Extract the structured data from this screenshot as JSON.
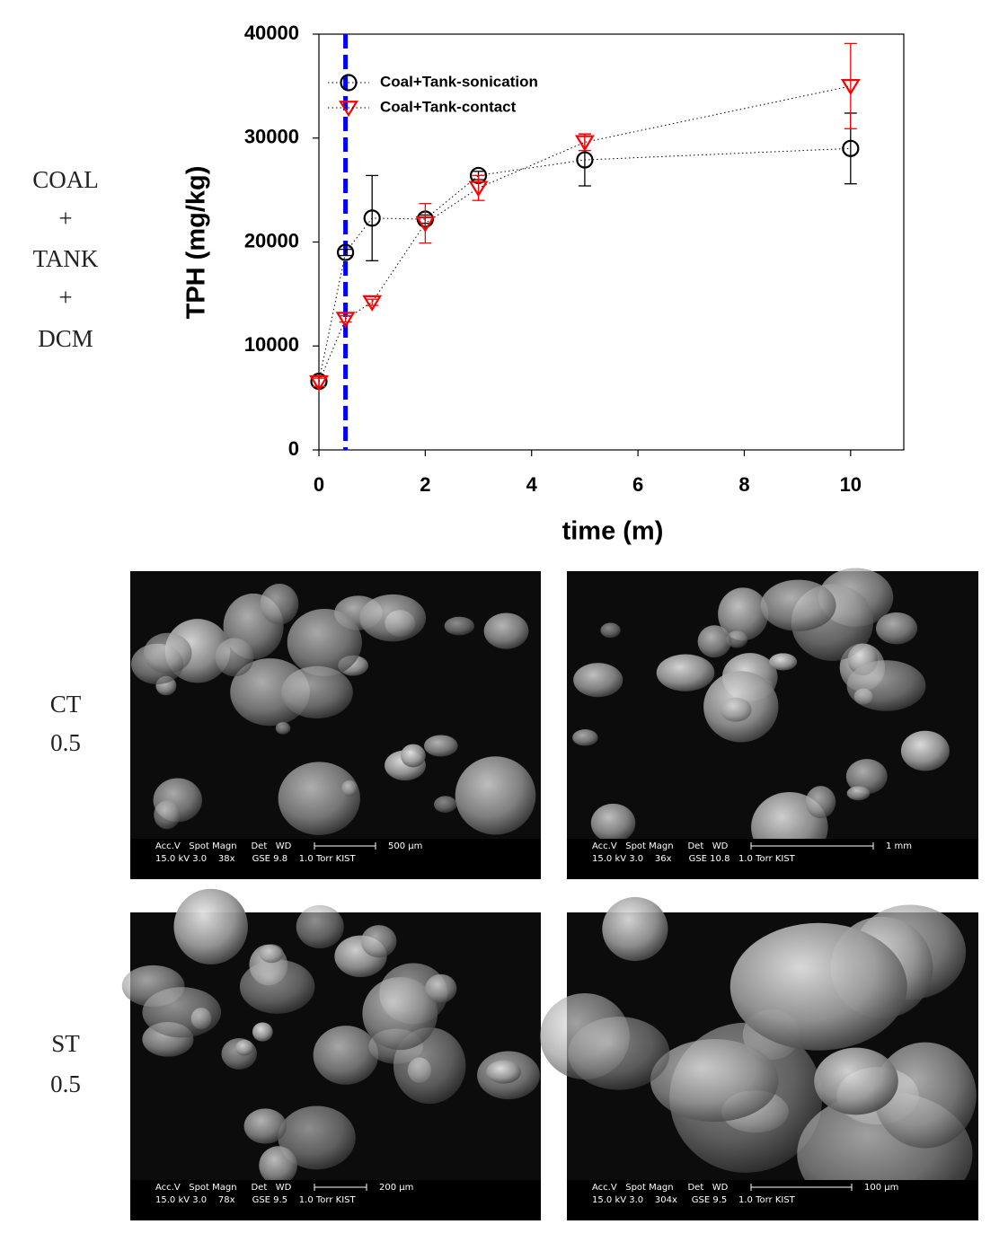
{
  "chart_data": {
    "type": "scatter",
    "ylabel": "TPH (mg/kg)",
    "xlabel": "time (m)",
    "x": [
      0,
      0.5,
      1,
      2,
      3,
      5,
      10
    ],
    "xlim": [
      0,
      11
    ],
    "ylim": [
      0,
      40000
    ],
    "xticks": [
      0,
      2,
      4,
      6,
      8,
      10
    ],
    "yticks": [
      0,
      10000,
      20000,
      30000,
      40000
    ],
    "legend": "upper-left",
    "vline": {
      "x": 0.5,
      "color": "#0000ff"
    },
    "series": [
      {
        "name": "Coal+Tank-sonication",
        "color": "#000000",
        "marker": "circle",
        "values": [
          6600,
          19000,
          22300,
          22200,
          26400,
          27900,
          29000
        ],
        "errors": [
          500,
          300,
          4100,
          400,
          400,
          2500,
          3400
        ]
      },
      {
        "name": "Coal+Tank-contact",
        "color": "#ff0000",
        "marker": "triangle-down",
        "values": [
          6500,
          12600,
          14200,
          21800,
          25200,
          29600,
          35000
        ],
        "errors": [
          400,
          300,
          300,
          1900,
          1200,
          800,
          4100
        ]
      }
    ]
  },
  "side_labels": {
    "top": [
      "COAL",
      "+",
      "TANK",
      "+",
      "DCM"
    ],
    "row1": [
      "CT",
      "0.5"
    ],
    "row2": [
      "ST",
      "0.5"
    ]
  },
  "sem_images": [
    {
      "info_line1": "Acc.V   Spot Magn     Det   WD",
      "info_line2": "15.0 kV 3.0    38x      GSE 9.8    1.0 Torr KIST",
      "scale": "500 µm"
    },
    {
      "info_line1": "Acc.V   Spot Magn     Det   WD",
      "info_line2": "15.0 kV 3.0    36x      GSE 10.8   1.0 Torr KIST",
      "scale": "1 mm"
    },
    {
      "info_line1": "Acc.V   Spot Magn     Det   WD",
      "info_line2": "15.0 kV 3.0    78x      GSE 9.5    1.0 Torr KIST",
      "scale": "200 µm"
    },
    {
      "info_line1": "Acc.V   Spot Magn     Det   WD",
      "info_line2": "15.0 kV 3.0    304x     GSE 9.5    1.0 Torr KIST",
      "scale": "100 µm"
    }
  ]
}
